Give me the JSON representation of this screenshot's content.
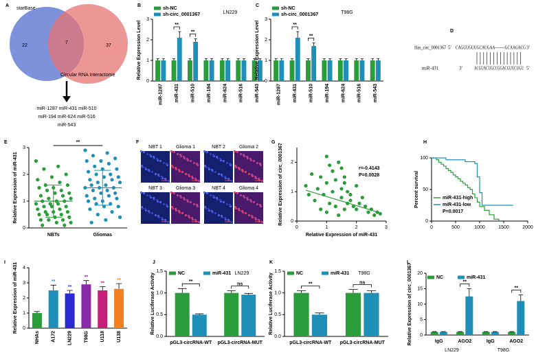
{
  "chart_data": [
    {
      "type": "venn",
      "label": "A",
      "sets": [
        {
          "name": "starBase",
          "color": "#6f86d6"
        },
        {
          "name": "Circular RNA Interactome",
          "color": "#e57373"
        }
      ],
      "values": [
        22,
        7,
        37
      ],
      "result": [
        "miR-1287 miR-431 miR-510",
        "miR-194 miR-624 miR-516",
        "miR-543"
      ]
    },
    {
      "type": "bar",
      "label": "B",
      "subtitle": "LN229",
      "ylabel": "Relative Expression Level",
      "ylim": [
        0,
        3
      ],
      "yticks": [
        0,
        1,
        2,
        3
      ],
      "categories": [
        "miR-1287",
        "miR-431",
        "miR-510",
        "miR-194",
        "miR-624",
        "miR-516",
        "miR-543"
      ],
      "series": [
        {
          "name": "sh-NC",
          "color": "#2a9d3a",
          "values": [
            1,
            1,
            1,
            1,
            1,
            1,
            1
          ],
          "errors": [
            0.08,
            0.08,
            0.08,
            0.08,
            0.08,
            0.08,
            0.08
          ]
        },
        {
          "name": "sh-circ_0001367",
          "color": "#1f8fb8",
          "values": [
            1,
            2.1,
            1.9,
            1,
            1,
            1,
            1
          ],
          "errors": [
            0.08,
            0.3,
            0.15,
            0.08,
            0.08,
            0.08,
            0.08
          ]
        }
      ],
      "significance": [
        null,
        "**",
        "**",
        null,
        null,
        null,
        null
      ]
    },
    {
      "type": "bar",
      "label": "C",
      "subtitle": "T98G",
      "ylabel": "Relative Expression Level",
      "ylim": [
        0,
        3
      ],
      "yticks": [
        0,
        1,
        2,
        3
      ],
      "categories": [
        "miR-1287",
        "miR-431",
        "miR-510",
        "miR-194",
        "miR-624",
        "miR-516",
        "miR-543"
      ],
      "series": [
        {
          "name": "sh-NC",
          "color": "#2a9d3a",
          "values": [
            1,
            1,
            1,
            1,
            1,
            1,
            1
          ],
          "errors": [
            0.08,
            0.08,
            0.08,
            0.08,
            0.08,
            0.08,
            0.08
          ]
        },
        {
          "name": "sh-circ_0001367",
          "color": "#1f8fb8",
          "values": [
            1,
            2.1,
            1.7,
            1,
            1,
            1,
            1
          ],
          "errors": [
            0.08,
            0.3,
            0.15,
            0.08,
            0.08,
            0.08,
            0.08
          ]
        }
      ],
      "significance": [
        null,
        "**",
        "**",
        null,
        null,
        null,
        null
      ]
    },
    {
      "type": "alignment",
      "label": "D",
      "rows": [
        [
          "Has_circ_0001367",
          "5'",
          "CAGUUGUUGCAUGAA--------GCAAGACG",
          "3'"
        ],
        [
          "miR-431",
          "3'",
          "ACGUACUGCCGGACGUUCUGU",
          "5'"
        ]
      ]
    },
    {
      "type": "strip",
      "label": "E",
      "ylabel": "Relative Expression of miR-431",
      "ylim": [
        0,
        3
      ],
      "yticks": [
        0,
        1,
        2,
        3
      ],
      "categories": [
        "NBTs",
        "Gliomas"
      ],
      "colors": [
        "#2a9d3a",
        "#1f8fb8"
      ],
      "means": [
        1.0,
        1.5
      ],
      "sds": [
        0.6,
        0.65
      ],
      "significance": "**",
      "values": [
        [
          2.5,
          2.3,
          2.2,
          2.0,
          1.9,
          1.8,
          1.7,
          1.6,
          1.6,
          1.5,
          1.5,
          1.4,
          1.4,
          1.3,
          1.3,
          1.2,
          1.2,
          1.1,
          1.1,
          1.0,
          1.0,
          1.0,
          0.9,
          0.9,
          0.9,
          0.8,
          0.8,
          0.8,
          0.7,
          0.7,
          0.6,
          0.6,
          0.6,
          0.5,
          0.5,
          0.5,
          0.4,
          0.4,
          0.3,
          0.3,
          0.3,
          0.2,
          0.2,
          0.1,
          0.1
        ],
        [
          2.9,
          2.8,
          2.7,
          2.6,
          2.5,
          2.5,
          2.4,
          2.3,
          2.2,
          2.2,
          2.1,
          2.0,
          2.0,
          1.9,
          1.9,
          1.8,
          1.8,
          1.7,
          1.7,
          1.6,
          1.6,
          1.5,
          1.5,
          1.5,
          1.4,
          1.4,
          1.3,
          1.3,
          1.2,
          1.2,
          1.1,
          1.1,
          1.0,
          1.0,
          0.9,
          0.9,
          0.8,
          0.8,
          0.7,
          0.6,
          0.5,
          0.4,
          0.3,
          0.2
        ]
      ]
    },
    {
      "type": "image_grid",
      "label": "F",
      "images": [
        "NBT 1",
        "Glioma 1",
        "NBT 2",
        "Glioma 2",
        "NBT 3",
        "Glioma 3",
        "NBT 4",
        "Glioma 4"
      ]
    },
    {
      "type": "scatter",
      "label": "G",
      "xlabel": "Relative Expression of miR-431",
      "ylabel": "Relative Expression of circ_0001367",
      "color": "#2a9d3a",
      "xlim": [
        0,
        3
      ],
      "xticks": [
        0,
        1,
        2,
        3
      ],
      "ylim": [
        0,
        2.5
      ],
      "yticks": [
        0,
        1,
        2
      ],
      "x": [
        0.3,
        0.5,
        0.6,
        0.7,
        0.8,
        0.8,
        0.9,
        1.0,
        1.0,
        1.1,
        1.1,
        1.2,
        1.2,
        1.3,
        1.3,
        1.4,
        1.4,
        1.5,
        1.5,
        1.5,
        1.6,
        1.6,
        1.7,
        1.7,
        1.8,
        1.8,
        1.9,
        2.0,
        2.0,
        2.1,
        2.2,
        2.3,
        2.4,
        2.5,
        2.6,
        2.7,
        2.8,
        0.4,
        1.0,
        1.6
      ],
      "y": [
        1.2,
        1.6,
        0.7,
        1.1,
        0.4,
        1.5,
        0.9,
        1.3,
        0.3,
        1.9,
        0.6,
        1.7,
        1.0,
        0.5,
        1.4,
        2.0,
        0.2,
        1.1,
        0.8,
        1.8,
        1.3,
        0.4,
        1.0,
        0.6,
        0.7,
        0.9,
        0.5,
        1.2,
        0.4,
        0.6,
        0.8,
        0.5,
        0.3,
        0.4,
        0.2,
        0.3,
        0.25,
        0.9,
        2.2,
        1.5
      ],
      "fit": {
        "x": [
          0.3,
          2.8
        ],
        "y": [
          1.05,
          0.28
        ]
      },
      "annotations": [
        "r=-0.4143",
        "P=0.0028"
      ]
    },
    {
      "type": "survival",
      "label": "H",
      "ylabel": "Percent survival",
      "xlim": [
        0,
        2000
      ],
      "xticks": [
        0,
        500,
        1000,
        1500,
        2000
      ],
      "ylim": [
        0,
        100
      ],
      "yticks": [
        0,
        50,
        100
      ],
      "annotation": "P=0.0017",
      "series": [
        {
          "name": "miR-431-high",
          "color": "#2a9d3a",
          "x": [
            0,
            100,
            150,
            200,
            250,
            300,
            350,
            400,
            450,
            500,
            550,
            600,
            650,
            700,
            750,
            800,
            850,
            900,
            950,
            1000,
            1100,
            1200,
            1300,
            1400
          ],
          "y": [
            100,
            97,
            93,
            90,
            87,
            83,
            80,
            77,
            73,
            70,
            67,
            63,
            60,
            57,
            53,
            50,
            43,
            37,
            30,
            23,
            17,
            10,
            3,
            0
          ]
        },
        {
          "name": "miR-431-low",
          "color": "#1f8fb8",
          "x": [
            0,
            300,
            700,
            900,
            950,
            1000,
            1050,
            1700
          ],
          "y": [
            100,
            97,
            94,
            91,
            70,
            45,
            25,
            25
          ]
        }
      ]
    },
    {
      "type": "bar",
      "label": "I",
      "ylabel": "Relative Expression of miR-431",
      "ylim": [
        0,
        4
      ],
      "yticks": [
        0,
        1,
        2,
        3,
        4
      ],
      "categories": [
        "NHAs",
        "A172",
        "LN229",
        "T98G",
        "U118",
        "U138"
      ],
      "series": [
        {
          "colors": [
            "#2a9d3a",
            "#1f8fb8",
            "#2a2ad0",
            "#8a2aa8",
            "#c8207a",
            "#f08020"
          ],
          "values": [
            1,
            2.5,
            2.3,
            2.9,
            2.5,
            2.6
          ],
          "errors": [
            0.1,
            0.35,
            0.2,
            0.25,
            0.25,
            0.35
          ]
        }
      ],
      "significance": [
        null,
        "**",
        "**",
        "**",
        "**",
        "**"
      ]
    },
    {
      "type": "bar",
      "label": "J",
      "subtitle": "LN229",
      "ylabel": "Relative Luciferase Activity",
      "ylim": [
        0,
        1.5
      ],
      "yticks": [
        {
          "value": 0,
          "label": "0.0"
        },
        {
          "value": 0.5,
          "label": "0.5"
        },
        {
          "value": 1,
          "label": "1.0"
        },
        {
          "value": 1.5,
          "label": "1.5"
        }
      ],
      "categories": [
        "pGL3-circRNA-WT",
        "pGL3-circRNA-MUT"
      ],
      "series": [
        {
          "name": "NC",
          "color": "#2a9d3a",
          "values": [
            1,
            1
          ],
          "errors": [
            0.1,
            0.05
          ]
        },
        {
          "name": "miR-431",
          "color": "#1f8fb8",
          "values": [
            0.5,
            0.96
          ],
          "errors": [
            0.02,
            0.03
          ]
        }
      ],
      "significance": [
        "**",
        "ns"
      ]
    },
    {
      "type": "bar",
      "label": "K",
      "subtitle": "T98G",
      "ylabel": "Relative Luciferase Activity",
      "ylim": [
        0,
        1.5
      ],
      "yticks": [
        {
          "value": 0,
          "label": "0.0"
        },
        {
          "value": 0.5,
          "label": "0.5"
        },
        {
          "value": 1,
          "label": "1.0"
        },
        {
          "value": 1.5,
          "label": "1.5"
        }
      ],
      "categories": [
        "pGL3-circRNA-WT",
        "pGL3-circRNA-MUT"
      ],
      "series": [
        {
          "name": "NC",
          "color": "#2a9d3a",
          "values": [
            1,
            1
          ],
          "errors": [
            0.05,
            0.08
          ]
        },
        {
          "name": "miR-431",
          "color": "#1f8fb8",
          "values": [
            0.5,
            1.0
          ],
          "errors": [
            0.04,
            0.05
          ]
        }
      ],
      "significance": [
        "**",
        "ns"
      ]
    },
    {
      "type": "bar",
      "label": "L",
      "ylabel": "Relative Expression of circ_0001367",
      "ylim": [
        0,
        20
      ],
      "yticks": [
        0,
        5,
        10,
        15,
        20
      ],
      "categories": [
        "IgG",
        "AGO2",
        "IgG",
        "AGO2"
      ],
      "groups": [
        "LN229",
        "T98G"
      ],
      "series": [
        {
          "name": "NC",
          "color": "#2a9d3a",
          "values": [
            1,
            1,
            1,
            1
          ],
          "errors": [
            0.1,
            0.1,
            0.1,
            0.1
          ]
        },
        {
          "name": "miR-431",
          "color": "#1f8fb8",
          "values": [
            1,
            12.5,
            1,
            11
          ],
          "errors": [
            0.1,
            2.5,
            0.1,
            2.0
          ]
        }
      ],
      "significance": [
        null,
        "**",
        null,
        "**"
      ]
    }
  ]
}
